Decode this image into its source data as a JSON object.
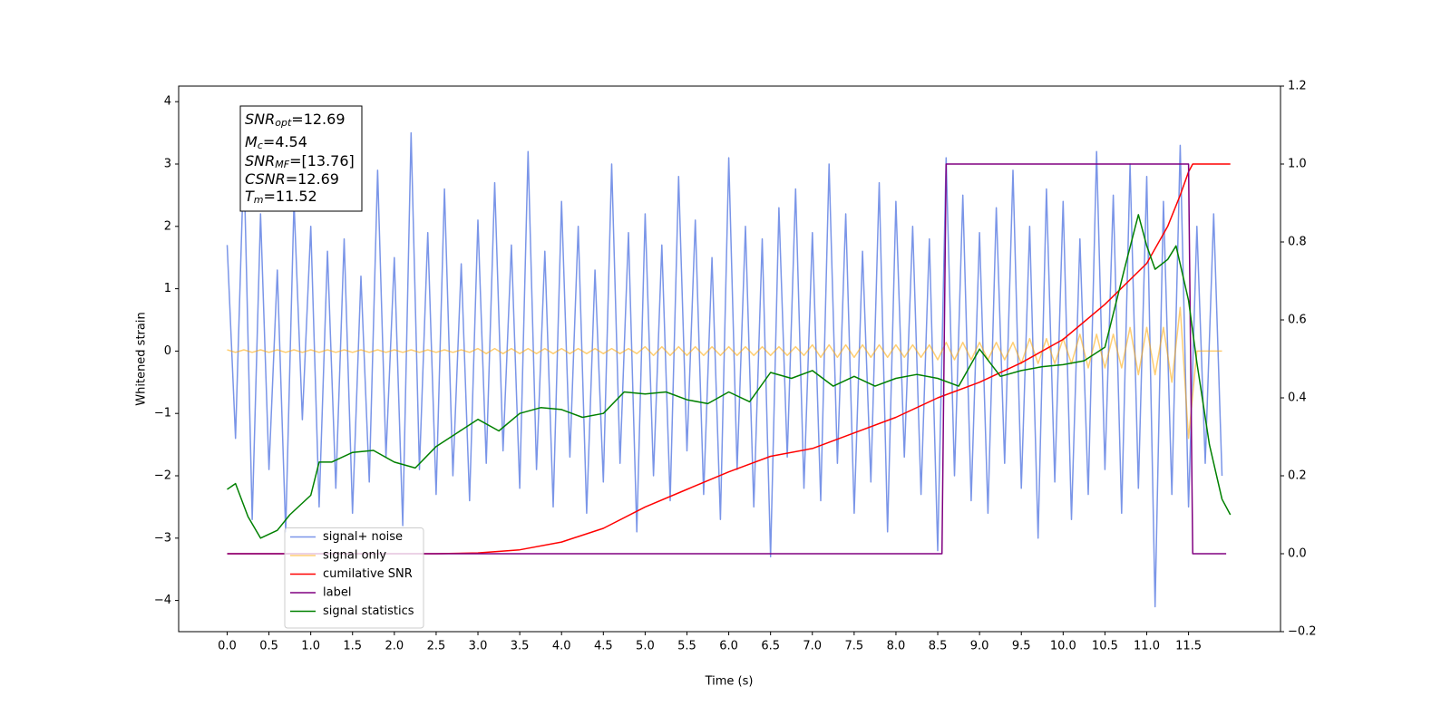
{
  "chart_data": {
    "type": "line",
    "xlabel": "Time (s)",
    "ylabel": "Whitened strain",
    "xlim": [
      -0.58,
      12.6
    ],
    "ylim": [
      -4.5,
      4.25
    ],
    "y2lim": [
      -0.2,
      1.2
    ],
    "xticks": [
      {
        "value": 0,
        "label": "0.0"
      },
      {
        "value": 0.5,
        "label": "0.5"
      },
      {
        "value": 1,
        "label": "1.0"
      },
      {
        "value": 1.5,
        "label": "1.5"
      },
      {
        "value": 2,
        "label": "2.0"
      },
      {
        "value": 2.5,
        "label": "2.5"
      },
      {
        "value": 3,
        "label": "3.0"
      },
      {
        "value": 3.5,
        "label": "3.5"
      },
      {
        "value": 4,
        "label": "4.0"
      },
      {
        "value": 4.5,
        "label": "4.5"
      },
      {
        "value": 5,
        "label": "5.0"
      },
      {
        "value": 5.5,
        "label": "5.5"
      },
      {
        "value": 6,
        "label": "6.0"
      },
      {
        "value": 6.5,
        "label": "6.5"
      },
      {
        "value": 7,
        "label": "7.0"
      },
      {
        "value": 7.5,
        "label": "7.5"
      },
      {
        "value": 8,
        "label": "8.0"
      },
      {
        "value": 8.5,
        "label": "8.5"
      },
      {
        "value": 9,
        "label": "9.0"
      },
      {
        "value": 9.5,
        "label": "9.5"
      },
      {
        "value": 10,
        "label": "10.0"
      },
      {
        "value": 10.5,
        "label": "10.5"
      },
      {
        "value": 11,
        "label": "11.0"
      },
      {
        "value": 11.5,
        "label": "11.5"
      }
    ],
    "yticks": [
      {
        "value": -4,
        "label": "−4"
      },
      {
        "value": -3,
        "label": "−3"
      },
      {
        "value": -2,
        "label": "−2"
      },
      {
        "value": -1,
        "label": "−1"
      },
      0,
      1,
      2,
      3,
      4
    ],
    "y2ticks": [
      {
        "value": -0.2,
        "label": "−0.2"
      },
      {
        "value": 0,
        "label": "0.0"
      },
      {
        "value": 0.2,
        "label": "0.2"
      },
      {
        "value": 0.4,
        "label": "0.4"
      },
      {
        "value": 0.6,
        "label": "0.6"
      },
      {
        "value": 0.8,
        "label": "0.8"
      },
      {
        "value": 1,
        "label": "1.0"
      },
      {
        "value": 1.2,
        "label": "1.2"
      }
    ],
    "legend": "lower left",
    "annotations": [
      {
        "main": "SNR",
        "sub": "opt",
        "rest": "=12.69"
      },
      {
        "main": "M",
        "sub": "c",
        "rest": "=4.54"
      },
      {
        "main": "SNR",
        "sub": "MF",
        "rest": "=[13.76]"
      },
      {
        "main": "CSNR",
        "sub": null,
        "rest": "=12.69"
      },
      {
        "main": "T",
        "sub": "m",
        "rest": "=11.52"
      }
    ],
    "series": [
      {
        "name": "signal+ noise",
        "color": "#6b8ae6",
        "opacity": 0.9,
        "x": [
          0,
          0.1,
          0.2,
          0.3,
          0.4,
          0.5,
          0.6,
          0.7,
          0.8,
          0.9,
          1,
          1.1,
          1.2,
          1.3,
          1.4,
          1.5,
          1.6,
          1.7,
          1.8,
          1.9,
          2,
          2.1,
          2.2,
          2.3,
          2.4,
          2.5,
          2.6,
          2.7,
          2.8,
          2.9,
          3,
          3.1,
          3.2,
          3.3,
          3.4,
          3.5,
          3.6,
          3.7,
          3.8,
          3.9,
          4,
          4.1,
          4.2,
          4.3,
          4.4,
          4.5,
          4.6,
          4.7,
          4.8,
          4.9,
          5,
          5.1,
          5.2,
          5.3,
          5.4,
          5.5,
          5.6,
          5.7,
          5.8,
          5.9,
          6,
          6.1,
          6.2,
          6.3,
          6.4,
          6.5,
          6.6,
          6.7,
          6.8,
          6.9,
          7,
          7.1,
          7.2,
          7.3,
          7.4,
          7.5,
          7.6,
          7.7,
          7.8,
          7.9,
          8,
          8.1,
          8.2,
          8.3,
          8.4,
          8.5,
          8.6,
          8.7,
          8.8,
          8.9,
          9,
          9.1,
          9.2,
          9.3,
          9.4,
          9.5,
          9.6,
          9.7,
          9.8,
          9.9,
          10,
          10.1,
          10.2,
          10.3,
          10.4,
          10.5,
          10.6,
          10.7,
          10.8,
          10.9,
          11,
          11.1,
          11.2,
          11.3,
          11.4,
          11.5,
          11.6,
          11.7,
          11.8,
          11.9
        ],
        "values": [
          1.7,
          -1.4,
          3.1,
          -2.7,
          2.2,
          -1.9,
          1.3,
          -2.9,
          2.4,
          -1.1,
          2.0,
          -2.5,
          1.6,
          -2.2,
          1.8,
          -2.6,
          1.2,
          -2.1,
          2.9,
          -1.7,
          1.5,
          -2.8,
          3.5,
          -1.9,
          1.9,
          -2.3,
          2.6,
          -2.0,
          1.4,
          -2.4,
          2.1,
          -1.8,
          2.7,
          -1.6,
          1.7,
          -2.2,
          3.2,
          -1.9,
          1.6,
          -2.5,
          2.4,
          -1.7,
          2.0,
          -2.6,
          1.3,
          -2.1,
          3.0,
          -1.8,
          1.9,
          -2.9,
          2.2,
          -2.0,
          1.7,
          -2.4,
          2.8,
          -1.6,
          2.1,
          -2.3,
          1.5,
          -2.7,
          3.1,
          -1.9,
          2.0,
          -2.5,
          1.8,
          -3.3,
          2.3,
          -1.7,
          2.6,
          -2.2,
          1.9,
          -2.4,
          3.0,
          -1.8,
          2.2,
          -2.6,
          1.6,
          -2.1,
          2.7,
          -2.9,
          2.4,
          -1.7,
          2.0,
          -2.3,
          1.8,
          -3.2,
          3.1,
          -2.0,
          2.5,
          -2.4,
          1.9,
          -2.6,
          2.3,
          -1.8,
          2.9,
          -2.2,
          2.0,
          -3.0,
          2.6,
          -2.1,
          2.4,
          -2.7,
          1.8,
          -2.3,
          3.2,
          -1.9,
          2.5,
          -2.6,
          3.0,
          -2.2,
          2.8,
          -4.1,
          2.4,
          -2.3,
          3.3,
          -2.5,
          2.0,
          -1.8,
          2.2,
          -2.0
        ]
      },
      {
        "name": "signal only",
        "color": "#ffa500",
        "opacity": 0.55,
        "x": [
          0,
          0.1,
          0.2,
          0.3,
          0.4,
          0.5,
          0.6,
          0.7,
          0.8,
          0.9,
          1,
          1.1,
          1.2,
          1.3,
          1.4,
          1.5,
          1.6,
          1.7,
          1.8,
          1.9,
          2,
          2.1,
          2.2,
          2.3,
          2.4,
          2.5,
          2.6,
          2.7,
          2.8,
          2.9,
          3,
          3.1,
          3.2,
          3.3,
          3.4,
          3.5,
          3.6,
          3.7,
          3.8,
          3.9,
          4,
          4.1,
          4.2,
          4.3,
          4.4,
          4.5,
          4.6,
          4.7,
          4.8,
          4.9,
          5,
          5.1,
          5.2,
          5.3,
          5.4,
          5.5,
          5.6,
          5.7,
          5.8,
          5.9,
          6,
          6.1,
          6.2,
          6.3,
          6.4,
          6.5,
          6.6,
          6.7,
          6.8,
          6.9,
          7,
          7.1,
          7.2,
          7.3,
          7.4,
          7.5,
          7.6,
          7.7,
          7.8,
          7.9,
          8,
          8.1,
          8.2,
          8.3,
          8.4,
          8.5,
          8.6,
          8.7,
          8.8,
          8.9,
          9,
          9.1,
          9.2,
          9.3,
          9.4,
          9.5,
          9.6,
          9.7,
          9.8,
          9.9,
          10,
          10.1,
          10.2,
          10.3,
          10.4,
          10.5,
          10.6,
          10.7,
          10.8,
          10.9,
          11,
          11.1,
          11.2,
          11.3,
          11.4,
          11.5,
          11.6,
          11.7,
          11.8,
          11.9
        ],
        "values": [
          0.02,
          -0.02,
          0.02,
          -0.02,
          0.02,
          -0.02,
          0.02,
          -0.02,
          0.02,
          -0.02,
          0.02,
          -0.02,
          0.02,
          -0.02,
          0.02,
          -0.02,
          0.02,
          -0.02,
          0.02,
          -0.02,
          0.02,
          -0.02,
          0.02,
          -0.02,
          0.02,
          -0.02,
          0.02,
          -0.02,
          0.02,
          -0.02,
          0.04,
          -0.04,
          0.04,
          -0.04,
          0.04,
          -0.04,
          0.04,
          -0.04,
          0.04,
          -0.04,
          0.04,
          -0.04,
          0.04,
          -0.04,
          0.04,
          -0.04,
          0.04,
          -0.04,
          0.04,
          -0.04,
          0.07,
          -0.07,
          0.07,
          -0.07,
          0.07,
          -0.07,
          0.07,
          -0.07,
          0.07,
          -0.07,
          0.07,
          -0.07,
          0.07,
          -0.07,
          0.07,
          -0.07,
          0.07,
          -0.07,
          0.07,
          -0.07,
          0.1,
          -0.1,
          0.1,
          -0.1,
          0.1,
          -0.1,
          0.1,
          -0.1,
          0.1,
          -0.1,
          0.1,
          -0.1,
          0.1,
          -0.1,
          0.1,
          -0.14,
          0.14,
          -0.14,
          0.14,
          -0.14,
          0.14,
          -0.14,
          0.14,
          -0.14,
          0.14,
          -0.2,
          0.2,
          -0.2,
          0.2,
          -0.2,
          0.2,
          -0.2,
          0.27,
          -0.27,
          0.27,
          -0.27,
          0.27,
          -0.27,
          0.38,
          -0.38,
          0.38,
          -0.38,
          0.38,
          -0.5,
          0.7,
          -1.4,
          0,
          0,
          0,
          0
        ]
      },
      {
        "name": "cumilative SNR",
        "color": "#ff0000",
        "axis": "y2",
        "x": [
          0,
          2.5,
          3,
          3.5,
          4,
          4.5,
          5,
          5.5,
          6,
          6.5,
          7,
          7.5,
          8,
          8.5,
          9,
          9.5,
          10,
          10.5,
          11,
          11.25,
          11.4,
          11.5,
          11.55,
          12
        ],
        "values": [
          0,
          0,
          0.002,
          0.01,
          0.03,
          0.065,
          0.12,
          0.165,
          0.21,
          0.25,
          0.27,
          0.31,
          0.35,
          0.4,
          0.44,
          0.49,
          0.55,
          0.64,
          0.745,
          0.84,
          0.92,
          0.98,
          1,
          1
        ]
      },
      {
        "name": "label",
        "color": "#800080",
        "axis": "y2",
        "x": [
          0,
          8.55,
          8.6,
          11.5,
          11.55,
          11.95
        ],
        "values": [
          0,
          0,
          1,
          1,
          0,
          0
        ]
      },
      {
        "name": "signal statistics",
        "color": "#008000",
        "axis": "y2",
        "x": [
          0,
          0.1,
          0.25,
          0.4,
          0.6,
          0.75,
          1,
          1.1,
          1.25,
          1.5,
          1.75,
          2,
          2.25,
          2.5,
          2.75,
          3,
          3.25,
          3.5,
          3.75,
          4,
          4.25,
          4.5,
          4.75,
          5,
          5.25,
          5.5,
          5.75,
          6,
          6.25,
          6.5,
          6.75,
          7,
          7.25,
          7.5,
          7.75,
          8,
          8.25,
          8.5,
          8.75,
          9,
          9.25,
          9.5,
          9.75,
          10,
          10.25,
          10.5,
          10.75,
          10.9,
          11,
          11.1,
          11.25,
          11.35,
          11.5,
          11.6,
          11.75,
          11.9,
          12
        ],
        "values": [
          0.165,
          0.18,
          0.095,
          0.04,
          0.06,
          0.1,
          0.15,
          0.235,
          0.235,
          0.26,
          0.265,
          0.235,
          0.22,
          0.275,
          0.31,
          0.345,
          0.315,
          0.36,
          0.375,
          0.37,
          0.35,
          0.36,
          0.415,
          0.41,
          0.415,
          0.395,
          0.385,
          0.415,
          0.39,
          0.465,
          0.45,
          0.47,
          0.43,
          0.455,
          0.43,
          0.45,
          0.46,
          0.45,
          0.43,
          0.525,
          0.455,
          0.47,
          0.48,
          0.485,
          0.495,
          0.53,
          0.745,
          0.87,
          0.79,
          0.73,
          0.755,
          0.79,
          0.65,
          0.49,
          0.28,
          0.14,
          0.1
        ]
      }
    ]
  }
}
